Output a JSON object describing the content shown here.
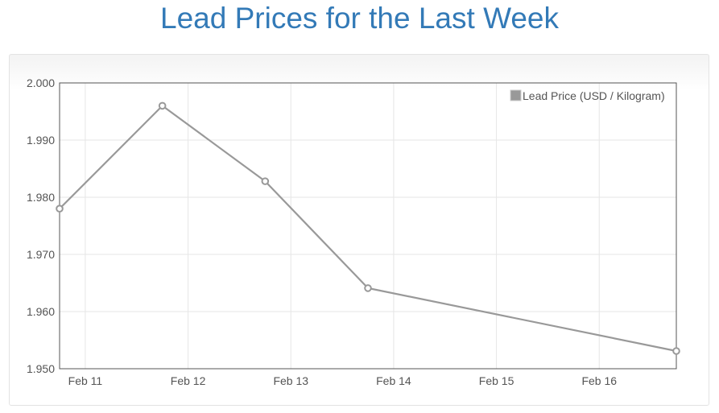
{
  "page": {
    "title": "Lead Prices for the Last Week"
  },
  "chart_data": {
    "type": "line",
    "title": "Lead Prices for the Last Week",
    "x_ticks": [
      "Feb 11",
      "Feb 12",
      "Feb 13",
      "Feb 14",
      "Feb 15",
      "Feb 16"
    ],
    "xlim": [
      "Feb 10 18:00",
      "Feb 16 18:00"
    ],
    "ylim": [
      1.95,
      2.0
    ],
    "y_ticks": [
      "1.950",
      "1.960",
      "1.970",
      "1.980",
      "1.990",
      "2.000"
    ],
    "series": [
      {
        "name": "Lead Price (USD / Kilogram)",
        "color": "#999999",
        "x": [
          "Feb 10 18:00",
          "Feb 11 18:00",
          "Feb 12 18:00",
          "Feb 13 18:00",
          "Feb 16 18:00"
        ],
        "y": [
          1.978,
          1.996,
          1.9828,
          1.9641,
          1.9531
        ]
      }
    ],
    "grid": true,
    "legend_position": "top-right"
  }
}
